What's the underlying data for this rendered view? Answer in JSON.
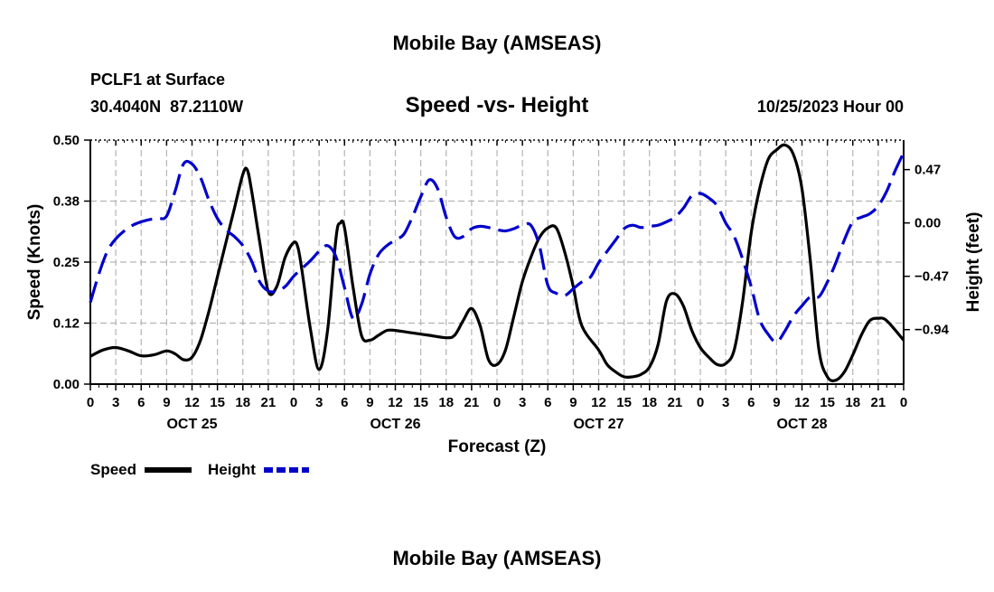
{
  "header": {
    "title_top": "Mobile Bay (AMSEAS)",
    "station": "PCLF1 at Surface",
    "coords": "30.4040N  87.2110W",
    "subtitle": "Speed -vs- Height",
    "datetime": "10/25/2023 Hour 00",
    "title_bottom": "Mobile Bay (AMSEAS)"
  },
  "legend": {
    "speed_label": "Speed",
    "height_label": "Height"
  },
  "colors": {
    "speed": "#000000",
    "height": "#0000cc",
    "grid": "#b4b4b4"
  },
  "chart_data": {
    "type": "line",
    "title": "Speed -vs- Height",
    "xlabel": "Forecast (Z)",
    "ylabel": "Speed (Knots)",
    "y2label": "Height (feet)",
    "xlim": [
      0,
      96
    ],
    "ylim": [
      0,
      0.5
    ],
    "y2lim": [
      -1.42,
      0.73
    ],
    "x_ticks": [
      0,
      3,
      6,
      9,
      12,
      15,
      18,
      21,
      24,
      27,
      30,
      33,
      36,
      39,
      42,
      45,
      48,
      51,
      54,
      57,
      60,
      63,
      66,
      69,
      72,
      75,
      78,
      81,
      84,
      87,
      90,
      93,
      96
    ],
    "x_tick_labels": [
      "0",
      "3",
      "6",
      "9",
      "12",
      "15",
      "18",
      "21",
      "0",
      "3",
      "6",
      "9",
      "12",
      "15",
      "18",
      "21",
      "0",
      "3",
      "6",
      "9",
      "12",
      "15",
      "18",
      "21",
      "0",
      "3",
      "6",
      "9",
      "12",
      "15",
      "18",
      "21",
      "0"
    ],
    "day_ticks": [
      12,
      36,
      60,
      84
    ],
    "day_labels": [
      "OCT 25",
      "OCT 26",
      "OCT 27",
      "OCT 28"
    ],
    "y_ticks": [
      0,
      0.125,
      0.25,
      0.375,
      0.5
    ],
    "y_tick_labels": [
      "0.00",
      "0.12",
      "0.25",
      "0.38",
      "0.50"
    ],
    "y2_ticks": [
      0.47,
      0,
      -0.47,
      -0.94
    ],
    "y2_tick_labels": [
      "0.47",
      "0.00",
      "−0.47",
      "−0.94"
    ],
    "series": [
      {
        "name": "Speed",
        "axis": "left",
        "style": "solid",
        "x": [
          0,
          1.5,
          3,
          4.5,
          6,
          7.5,
          9,
          10,
          11,
          12,
          13,
          14,
          15,
          16,
          17,
          18,
          18.5,
          19,
          20,
          21,
          22,
          23,
          24,
          24.5,
          25,
          26,
          27,
          28,
          29,
          29.5,
          30,
          31,
          32,
          33,
          34,
          35,
          36,
          38,
          40,
          42,
          43,
          44,
          45,
          46,
          47,
          48,
          49,
          50,
          51,
          52,
          53,
          54,
          55,
          56,
          57,
          58,
          60,
          61,
          62,
          63,
          64,
          65,
          66,
          67,
          68,
          69,
          70,
          71,
          72,
          73,
          74,
          75,
          76,
          77,
          78,
          79,
          80,
          81,
          82,
          83,
          84,
          85,
          86,
          87,
          88,
          89,
          90,
          91,
          92,
          93,
          94,
          96
        ],
        "values": [
          0.057,
          0.07,
          0.075,
          0.068,
          0.058,
          0.06,
          0.068,
          0.062,
          0.05,
          0.055,
          0.09,
          0.15,
          0.22,
          0.29,
          0.36,
          0.43,
          0.44,
          0.4,
          0.29,
          0.19,
          0.2,
          0.26,
          0.29,
          0.28,
          0.23,
          0.11,
          0.03,
          0.11,
          0.3,
          0.33,
          0.32,
          0.2,
          0.1,
          0.09,
          0.1,
          0.11,
          0.11,
          0.105,
          0.1,
          0.095,
          0.1,
          0.13,
          0.155,
          0.12,
          0.05,
          0.04,
          0.07,
          0.14,
          0.21,
          0.26,
          0.3,
          0.32,
          0.32,
          0.27,
          0.2,
          0.12,
          0.07,
          0.04,
          0.025,
          0.015,
          0.015,
          0.02,
          0.035,
          0.08,
          0.17,
          0.185,
          0.16,
          0.11,
          0.075,
          0.055,
          0.04,
          0.042,
          0.07,
          0.17,
          0.31,
          0.4,
          0.46,
          0.48,
          0.49,
          0.47,
          0.4,
          0.25,
          0.07,
          0.015,
          0.008,
          0.025,
          0.06,
          0.1,
          0.13,
          0.135,
          0.13,
          0.09
        ]
      },
      {
        "name": "Height",
        "axis": "right",
        "style": "dashed",
        "x": [
          0,
          1,
          2,
          3,
          4,
          5,
          6,
          7,
          8,
          9,
          10,
          11,
          12,
          13,
          14,
          15,
          16,
          17,
          18,
          19,
          20,
          21,
          22,
          23,
          24,
          25,
          26,
          27,
          28,
          29,
          30,
          31,
          32,
          33,
          34,
          35,
          36,
          37,
          38,
          39,
          40,
          41,
          42,
          43,
          44,
          45,
          46,
          47,
          48,
          49,
          50,
          51,
          52,
          53,
          54,
          55,
          56,
          57,
          58,
          59,
          60,
          61,
          62,
          63,
          64,
          65,
          66,
          67,
          68,
          69,
          70,
          71,
          72,
          73,
          74,
          75,
          76,
          77,
          78,
          79,
          80,
          81,
          82,
          83,
          84,
          85,
          86,
          87,
          88,
          89,
          90,
          91,
          92,
          93,
          94,
          95,
          96
        ],
        "values": [
          -0.7,
          -0.45,
          -0.25,
          -0.14,
          -0.07,
          -0.02,
          0.01,
          0.03,
          0.04,
          0.06,
          0.28,
          0.52,
          0.52,
          0.4,
          0.2,
          0.04,
          -0.06,
          -0.12,
          -0.2,
          -0.33,
          -0.52,
          -0.6,
          -0.6,
          -0.56,
          -0.47,
          -0.4,
          -0.33,
          -0.25,
          -0.2,
          -0.3,
          -0.57,
          -0.84,
          -0.72,
          -0.45,
          -0.28,
          -0.2,
          -0.15,
          -0.1,
          0.05,
          0.23,
          0.38,
          0.3,
          0.05,
          -0.12,
          -0.12,
          -0.05,
          -0.03,
          -0.04,
          -0.06,
          -0.07,
          -0.05,
          -0.02,
          -0.02,
          -0.2,
          -0.55,
          -0.62,
          -0.64,
          -0.58,
          -0.52,
          -0.48,
          -0.35,
          -0.25,
          -0.15,
          -0.05,
          -0.02,
          -0.04,
          -0.03,
          -0.02,
          0.01,
          0.05,
          0.13,
          0.24,
          0.26,
          0.22,
          0.15,
          0.0,
          -0.12,
          -0.32,
          -0.56,
          -0.85,
          -0.98,
          -1.05,
          -0.95,
          -0.82,
          -0.73,
          -0.65,
          -0.65,
          -0.52,
          -0.35,
          -0.15,
          0.01,
          0.05,
          0.08,
          0.15,
          0.28,
          0.46,
          0.62
        ]
      }
    ]
  }
}
